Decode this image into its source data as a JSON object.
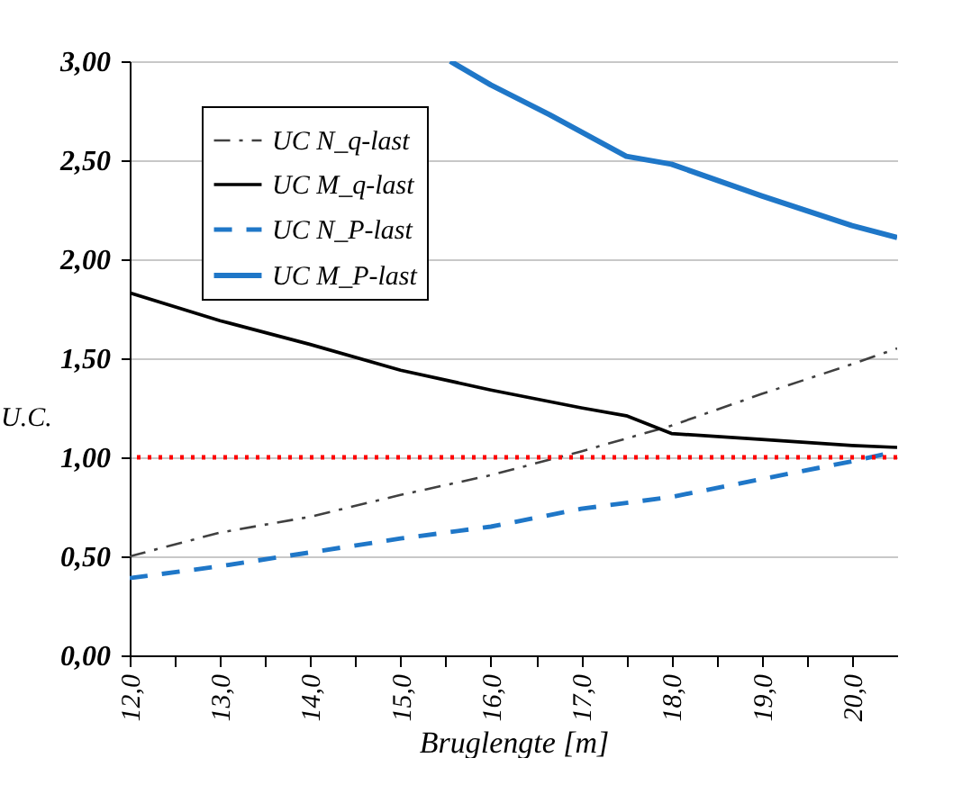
{
  "chart_data": {
    "type": "line",
    "xlabel": "Bruglengte [m]",
    "ylabel": "U.C.",
    "xlim": [
      12,
      20.5
    ],
    "ylim": [
      0,
      3
    ],
    "xticks": [
      {
        "value": 12,
        "label": "12,0"
      },
      {
        "value": 12.5,
        "label": null
      },
      {
        "value": 13,
        "label": "13,0"
      },
      {
        "value": 13.5,
        "label": null
      },
      {
        "value": 14,
        "label": "14,0"
      },
      {
        "value": 14.5,
        "label": null
      },
      {
        "value": 15,
        "label": "15,0"
      },
      {
        "value": 15.5,
        "label": null
      },
      {
        "value": 16,
        "label": "16,0"
      },
      {
        "value": 16.5,
        "label": null
      },
      {
        "value": 17,
        "label": "17,0"
      },
      {
        "value": 17.5,
        "label": null
      },
      {
        "value": 18,
        "label": "18,0"
      },
      {
        "value": 18.5,
        "label": null
      },
      {
        "value": 19,
        "label": "19,0"
      },
      {
        "value": 19.5,
        "label": null
      },
      {
        "value": 20,
        "label": "20,0"
      }
    ],
    "yticks": [
      {
        "value": 0,
        "label": "0,00"
      },
      {
        "value": 0.5,
        "label": "0,50"
      },
      {
        "value": 1,
        "label": "1,00"
      },
      {
        "value": 1.5,
        "label": "1,50"
      },
      {
        "value": 2,
        "label": "2,00"
      },
      {
        "value": 2.5,
        "label": "2,50"
      },
      {
        "value": 3,
        "label": "3,00"
      }
    ],
    "grid": "y",
    "legend": "top left",
    "ref_lines": [
      {
        "axis": "y",
        "value": 1,
        "color": "#ff0000",
        "line_style": "dotted"
      }
    ],
    "series": [
      {
        "name": "UC N_q-last",
        "color": "#404040",
        "line_style": "dashdot",
        "x": [
          12,
          13,
          14,
          15,
          16,
          17,
          18,
          19,
          20,
          20.5
        ],
        "values": [
          0.5,
          0.62,
          0.7,
          0.81,
          0.91,
          1.03,
          1.16,
          1.32,
          1.47,
          1.55
        ]
      },
      {
        "name": "UC M_q-last",
        "color": "#000000",
        "line_style": "solid",
        "x": [
          12,
          13,
          14,
          15,
          16,
          17,
          17.5,
          18,
          19,
          20,
          20.5
        ],
        "values": [
          1.83,
          1.69,
          1.57,
          1.44,
          1.34,
          1.25,
          1.21,
          1.12,
          1.09,
          1.06,
          1.05
        ]
      },
      {
        "name": "UC N_P-last",
        "color": "#1f77c8",
        "line_style": "dashed",
        "x": [
          12,
          13,
          14,
          15,
          16,
          17,
          18,
          19,
          20,
          20.5
        ],
        "values": [
          0.39,
          0.45,
          0.52,
          0.59,
          0.65,
          0.74,
          0.8,
          0.89,
          0.98,
          1.03
        ]
      },
      {
        "name": "UC M_P-last",
        "color": "#1f77c8",
        "line_style": "solid",
        "x": [
          15.55,
          16,
          16.65,
          17.5,
          18,
          19,
          20,
          20.5
        ],
        "values": [
          3.0,
          2.88,
          2.73,
          2.52,
          2.48,
          2.32,
          2.17,
          2.11
        ]
      }
    ]
  }
}
